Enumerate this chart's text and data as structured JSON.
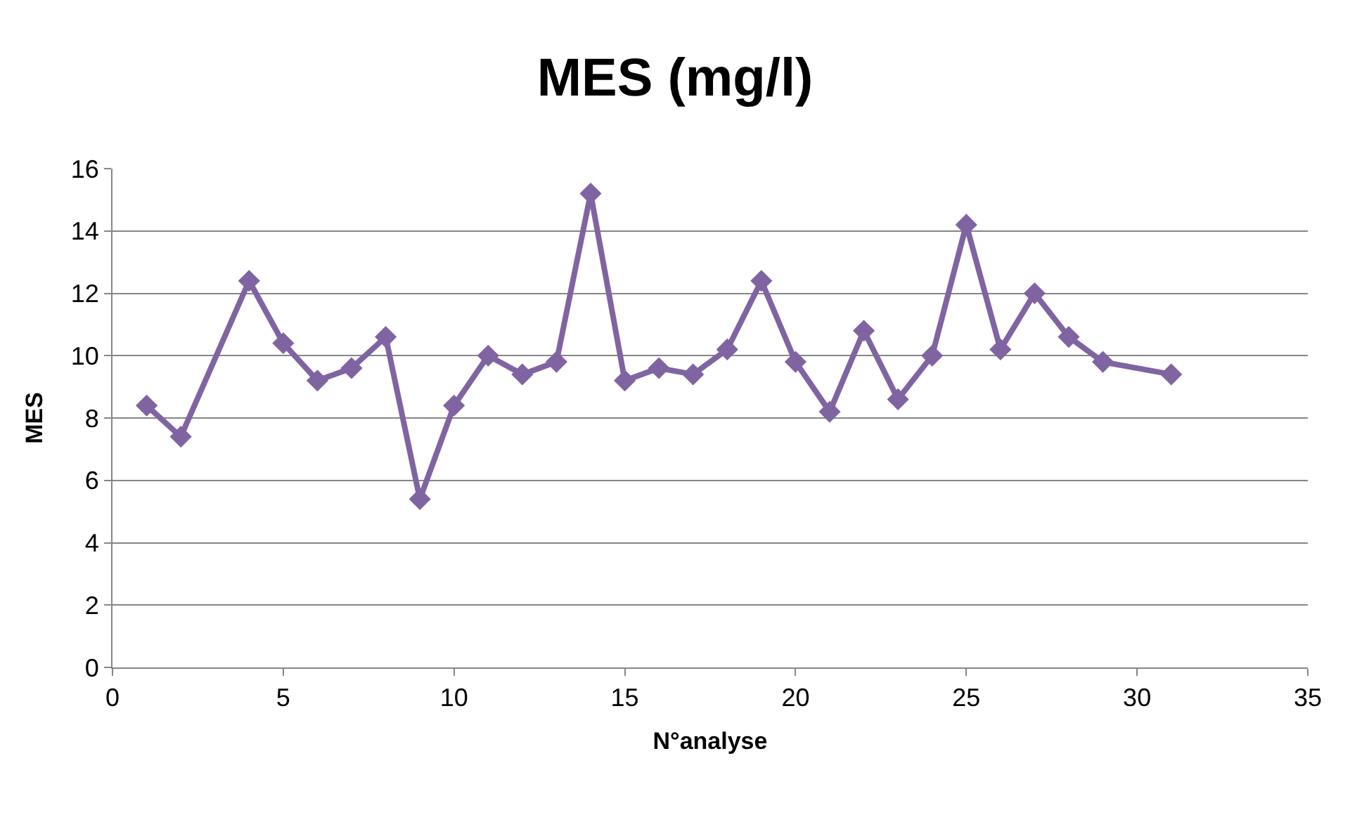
{
  "chart_data": {
    "type": "line",
    "title": "MES (mg/l)",
    "xlabel": "N°analyse",
    "ylabel": "MES",
    "x": [
      1,
      2,
      4,
      5,
      6,
      7,
      8,
      9,
      10,
      11,
      12,
      13,
      14,
      15,
      16,
      17,
      18,
      19,
      20,
      21,
      22,
      23,
      24,
      25,
      26,
      27,
      28,
      29,
      31
    ],
    "series": [
      {
        "color": "#8064a2",
        "values": [
          8.4,
          7.4,
          12.4,
          10.4,
          9.2,
          9.6,
          10.6,
          5.4,
          8.4,
          10.0,
          9.4,
          9.8,
          15.2,
          9.2,
          9.6,
          9.4,
          10.2,
          12.4,
          9.8,
          8.2,
          10.8,
          8.6,
          10.0,
          14.2,
          10.2,
          12.0,
          10.6,
          9.8,
          9.4
        ]
      }
    ],
    "xlim": [
      0,
      35
    ],
    "xticks": [
      0,
      5,
      10,
      15,
      20,
      25,
      30,
      35
    ],
    "ylim": [
      0,
      16
    ],
    "yticks": [
      0,
      2,
      4,
      6,
      8,
      10,
      12,
      14,
      16
    ],
    "grid": "y",
    "legend": false,
    "marker": "diamond",
    "line_style": "solid"
  }
}
